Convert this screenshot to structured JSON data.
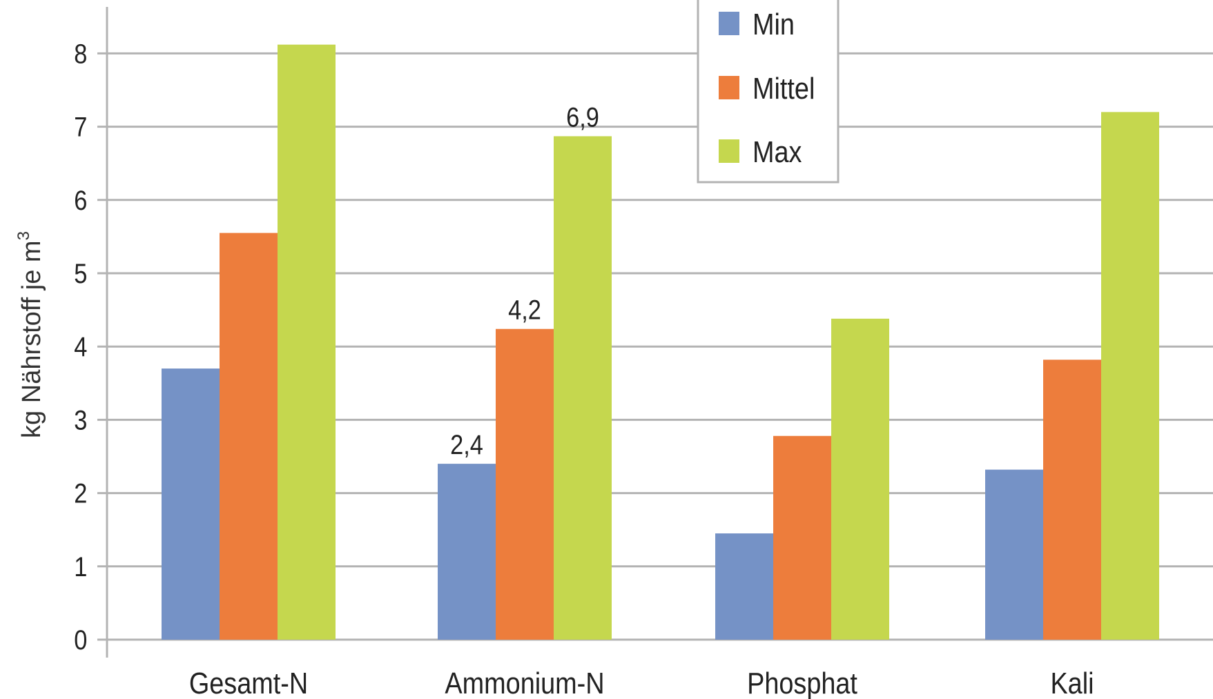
{
  "chart_data": {
    "type": "bar",
    "title": "",
    "xlabel": "",
    "ylabel": "kg Nährstoff je m",
    "ylabel_superscript": "3",
    "categories": [
      "Gesamt-N",
      "Ammonium-N",
      "Phosphat",
      "Kali"
    ],
    "series": [
      {
        "name": "Min",
        "color": "#7592c6",
        "values": [
          3.7,
          2.4,
          1.45,
          2.32
        ]
      },
      {
        "name": "Mittel",
        "color": "#ed7d3c",
        "values": [
          5.55,
          4.24,
          2.78,
          3.82
        ]
      },
      {
        "name": "Max",
        "color": "#c5d74e",
        "values": [
          8.12,
          6.87,
          4.38,
          7.2
        ]
      }
    ],
    "data_labels": [
      {
        "series": "Min",
        "category": "Ammonium-N",
        "text": "2,4"
      },
      {
        "series": "Mittel",
        "category": "Ammonium-N",
        "text": "4,2"
      },
      {
        "series": "Max",
        "category": "Ammonium-N",
        "text": "6,9"
      }
    ],
    "ylim": [
      0,
      8.6
    ],
    "yticks": [
      0,
      1,
      2,
      3,
      4,
      5,
      6,
      7,
      8
    ],
    "grid": true,
    "legend_position": "top-center"
  }
}
